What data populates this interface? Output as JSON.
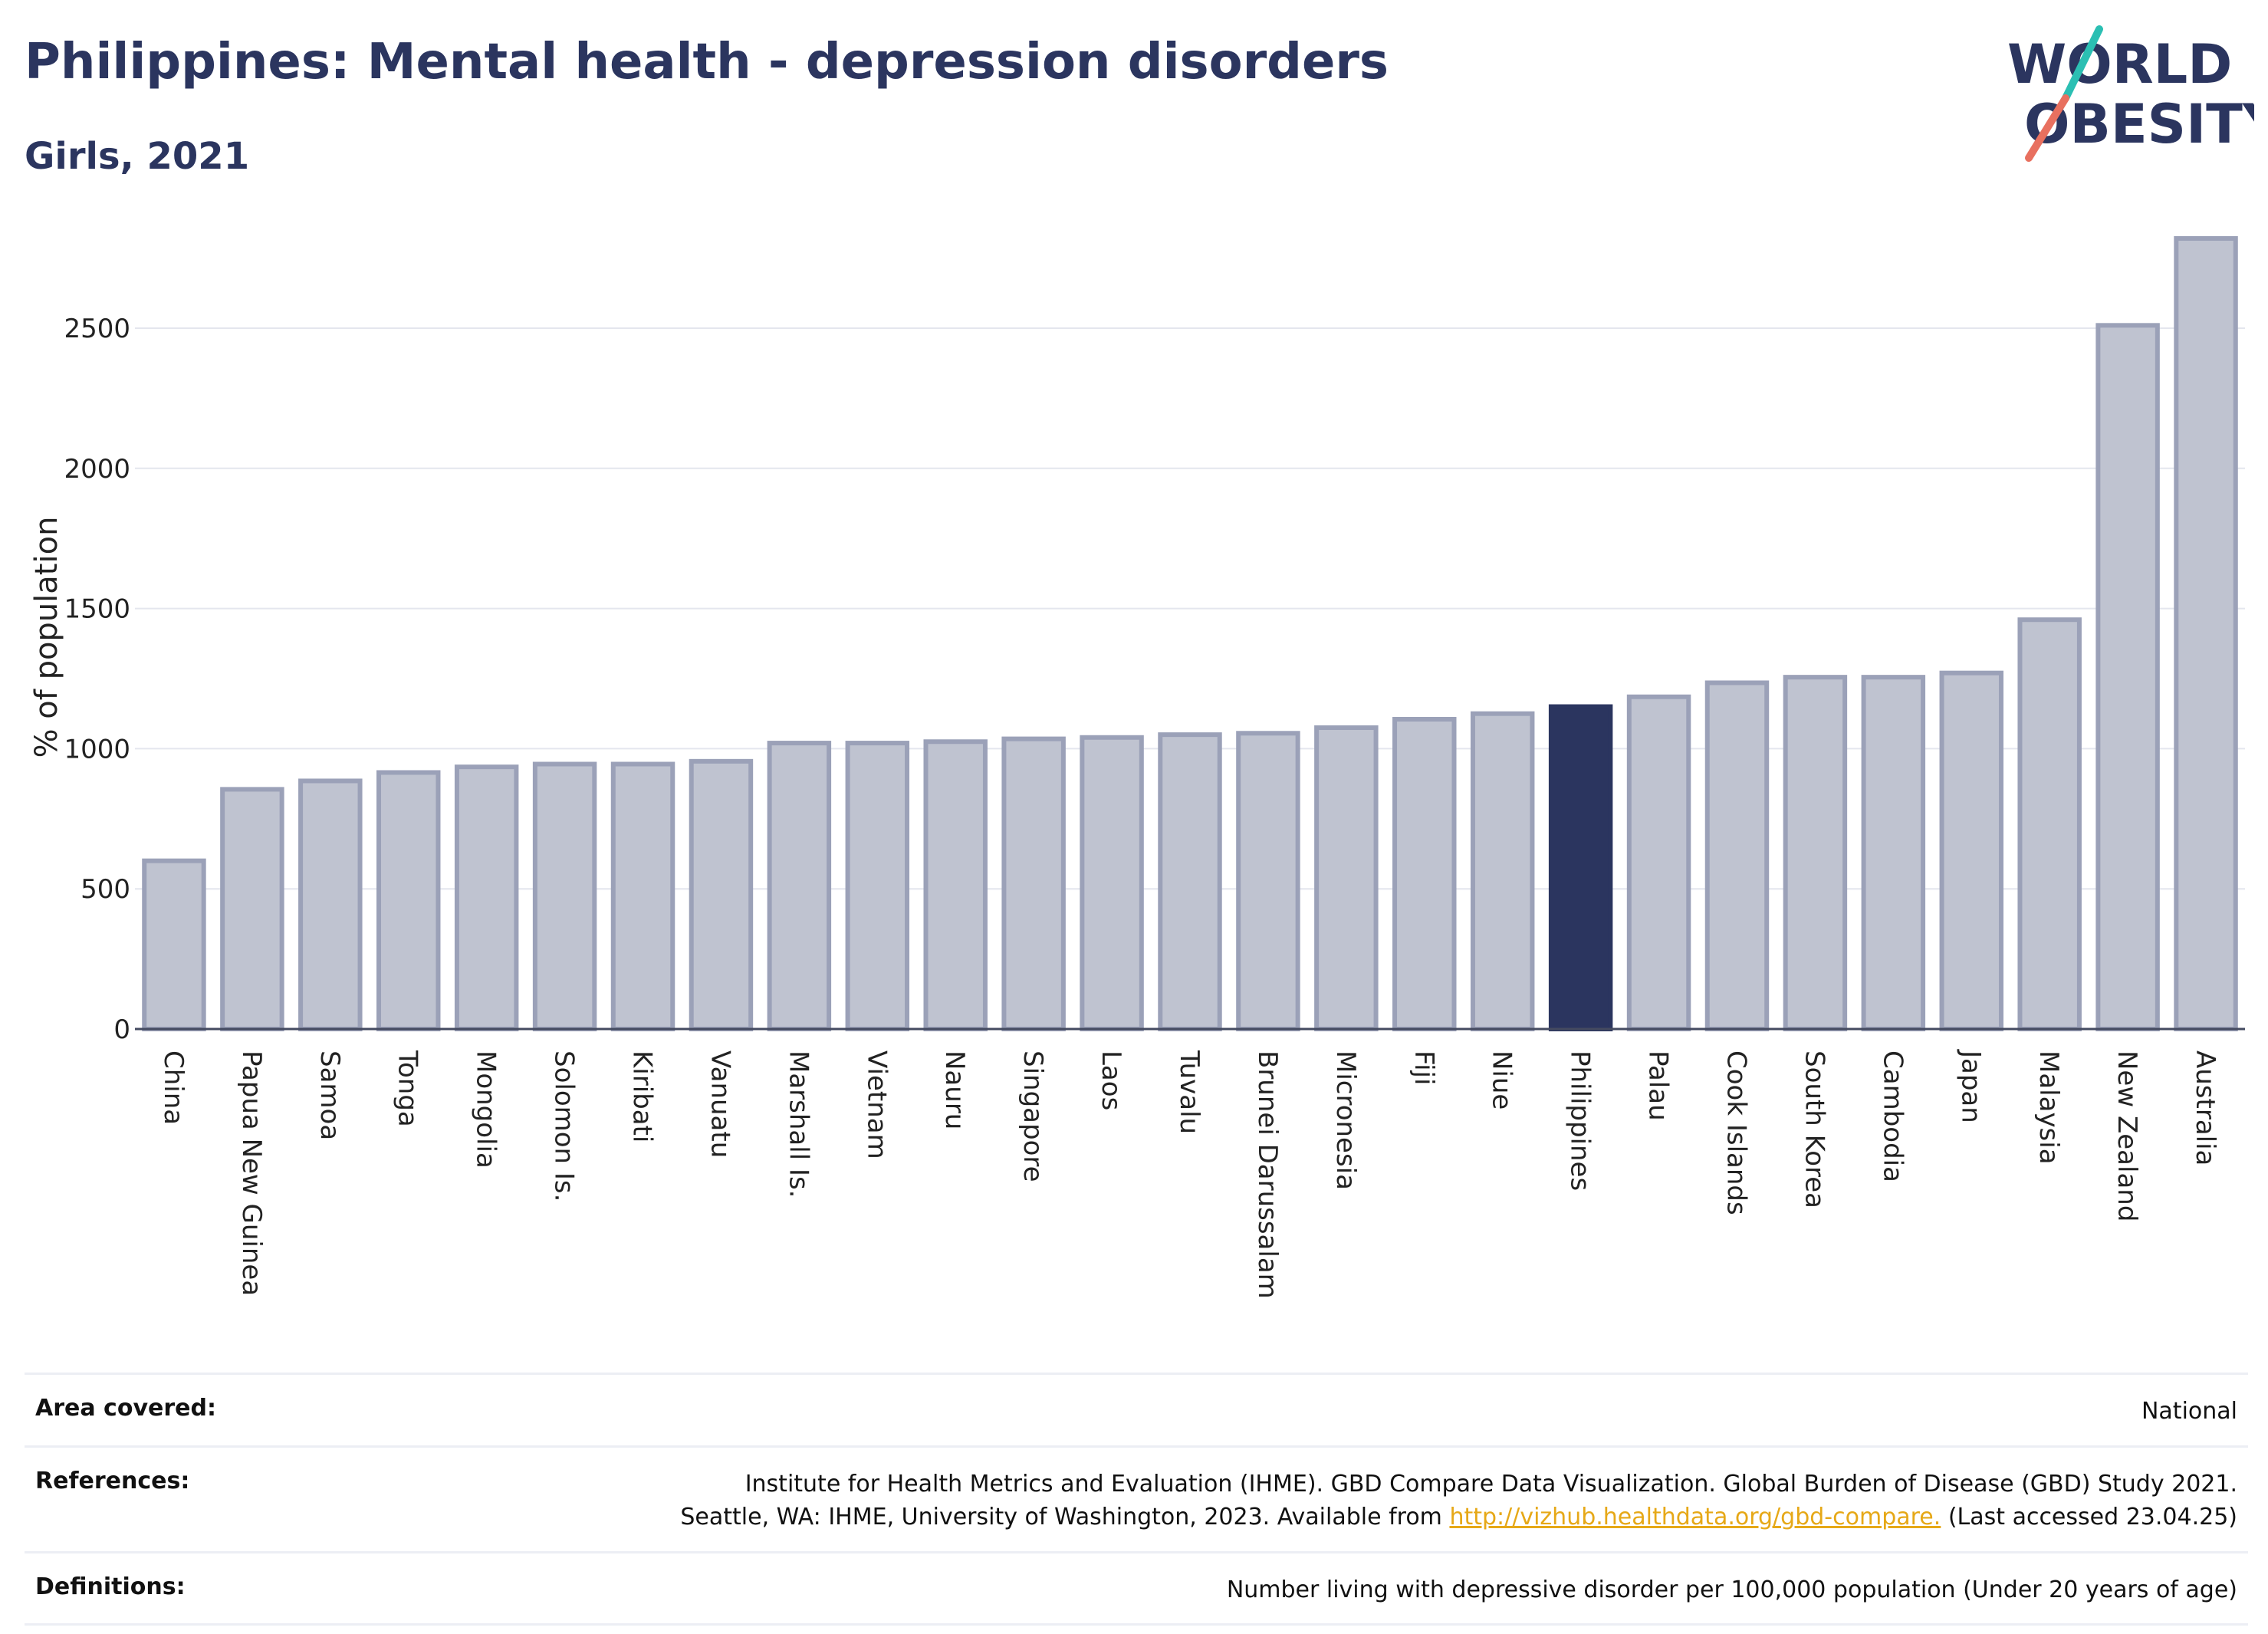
{
  "header": {
    "title": "Philippines: Mental health - depression disorders",
    "subtitle": "Girls, 2021"
  },
  "logo": {
    "line1": "WORLD",
    "line2": "OBESITY",
    "colors": {
      "text": "#2b355f",
      "slash_top": "#2bbfb3",
      "slash_bottom": "#e8705f"
    }
  },
  "colors": {
    "bar_default": "#bfc3d0",
    "bar_outline": "#9ba1b8",
    "bar_highlight": "#2b355f",
    "grid": "#e4e6ee"
  },
  "chart_data": {
    "type": "bar",
    "title": "Philippines: Mental health - depression disorders",
    "subtitle": "Girls, 2021",
    "xlabel": "",
    "ylabel": "% of population",
    "ylim": [
      0,
      2850
    ],
    "yticks": [
      0,
      500,
      1000,
      1500,
      2000,
      2500
    ],
    "grid": true,
    "highlight": "Philippines",
    "categories": [
      "China",
      "Papua New Guinea",
      "Samoa",
      "Tonga",
      "Mongolia",
      "Solomon Is.",
      "Kiribati",
      "Vanuatu",
      "Marshall Is.",
      "Vietnam",
      "Nauru",
      "Singapore",
      "Laos",
      "Tuvalu",
      "Brunei Darussalam",
      "Micronesia",
      "Fiji",
      "Niue",
      "Philippines",
      "Palau",
      "Cook Islands",
      "South Korea",
      "Cambodia",
      "Japan",
      "Malaysia",
      "New Zealand",
      "Australia"
    ],
    "values": [
      600,
      855,
      885,
      915,
      935,
      945,
      945,
      955,
      1020,
      1020,
      1025,
      1035,
      1040,
      1050,
      1055,
      1075,
      1105,
      1125,
      1150,
      1185,
      1235,
      1255,
      1255,
      1270,
      1460,
      2510,
      2820
    ]
  },
  "info": {
    "area_label": "Area covered:",
    "area_value": "National",
    "references_label": "References:",
    "references_line1": "Institute for Health Metrics and Evaluation (IHME). GBD Compare Data Visualization. Global Burden of Disease (GBD) Study 2021.",
    "references_line2_pre": "Seattle, WA: IHME, University of Washington, 2023. Available from ",
    "references_link": "http://vizhub.healthdata.org/gbd-compare.",
    "references_line2_post": " (Last accessed 23.04.25)",
    "definitions_label": "Definitions:",
    "definitions_value": "Number living with depressive disorder per 100,000 population (Under 20 years of age)"
  }
}
